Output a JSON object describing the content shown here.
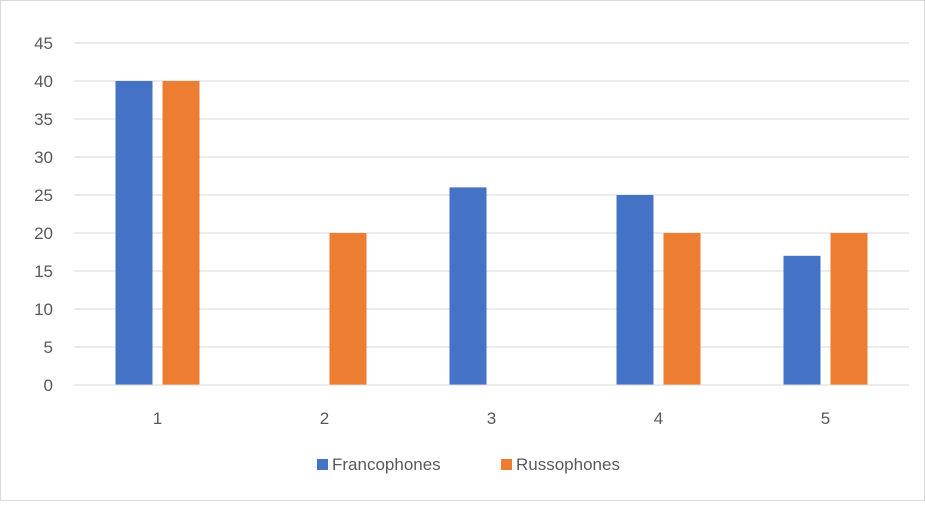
{
  "chart_data": {
    "type": "bar",
    "categories": [
      "1",
      "2",
      "3",
      "4",
      "5"
    ],
    "series": [
      {
        "name": "Francophones",
        "values": [
          40,
          0,
          26,
          25,
          17
        ],
        "color": "#4472C4"
      },
      {
        "name": "Russophones",
        "values": [
          40,
          20,
          0,
          20,
          20
        ],
        "color": "#ED7D31"
      }
    ],
    "ylim": [
      0,
      45
    ],
    "yticks": [
      "0",
      "5",
      "10",
      "15",
      "20",
      "25",
      "30",
      "35",
      "40",
      "45"
    ],
    "grid": true,
    "legend_position": "bottom",
    "gridline_color": "#d9d9d9",
    "text_color": "#595959"
  }
}
